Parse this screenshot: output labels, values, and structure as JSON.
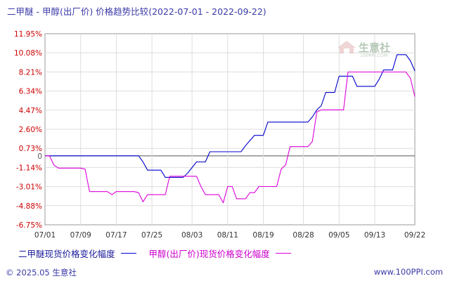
{
  "title": {
    "main": "二甲醚 - 甲醇(出厂价) 价格趋势比较",
    "range": "(2022-07-01 - 2022-09-22)"
  },
  "chart_data": {
    "type": "line",
    "y_ticks": [
      "11.95%",
      "10.08%",
      "8.21%",
      "6.34%",
      "4.47%",
      "2.60%",
      "0.73%",
      "0",
      "-1.14%",
      "-3.01%",
      "-4.88%",
      "-6.75%"
    ],
    "y_tick_values": [
      11.95,
      10.08,
      8.21,
      6.34,
      4.47,
      2.6,
      0.73,
      0,
      -1.14,
      -3.01,
      -4.88,
      -6.75
    ],
    "ylim": [
      -6.75,
      11.95
    ],
    "xlim": [
      "2022-07-01",
      "2022-09-22"
    ],
    "x_ticks": [
      {
        "label": "07/01",
        "date": "2022-07-01"
      },
      {
        "label": "07/09",
        "date": "2022-07-09"
      },
      {
        "label": "07/17",
        "date": "2022-07-17"
      },
      {
        "label": "07/25",
        "date": "2022-07-25"
      },
      {
        "label": "08/03",
        "date": "2022-08-03"
      },
      {
        "label": "08/11",
        "date": "2022-08-11"
      },
      {
        "label": "08/19",
        "date": "2022-08-19"
      },
      {
        "label": "08/28",
        "date": "2022-08-28"
      },
      {
        "label": "09/05",
        "date": "2022-09-05"
      },
      {
        "label": "09/13",
        "date": "2022-09-13"
      },
      {
        "label": "09/22",
        "date": "2022-09-22"
      }
    ],
    "grid": true,
    "legend_placement": "bottom",
    "series": [
      {
        "name": "二甲醚现货价格变化幅度",
        "color": "#0000cc",
        "points": [
          [
            "2022-07-01",
            0
          ],
          [
            "2022-07-03",
            0
          ],
          [
            "2022-07-22",
            0
          ],
          [
            "2022-07-23",
            -0.6
          ],
          [
            "2022-07-24",
            -1.4
          ],
          [
            "2022-07-27",
            -1.4
          ],
          [
            "2022-07-28",
            -2.1
          ],
          [
            "2022-08-01",
            -2.1
          ],
          [
            "2022-08-02",
            -1.7
          ],
          [
            "2022-08-04",
            -0.6
          ],
          [
            "2022-08-06",
            -0.6
          ],
          [
            "2022-08-07",
            0.4
          ],
          [
            "2022-08-14",
            0.4
          ],
          [
            "2022-08-15",
            1.0
          ],
          [
            "2022-08-16",
            1.5
          ],
          [
            "2022-08-17",
            2.0
          ],
          [
            "2022-08-19",
            2.0
          ],
          [
            "2022-08-20",
            3.3
          ],
          [
            "2022-08-29",
            3.3
          ],
          [
            "2022-08-30",
            3.8
          ],
          [
            "2022-08-31",
            4.5
          ],
          [
            "2022-09-01",
            4.9
          ],
          [
            "2022-09-02",
            6.2
          ],
          [
            "2022-09-03",
            6.2
          ],
          [
            "2022-09-04",
            6.2
          ],
          [
            "2022-09-05",
            7.8
          ],
          [
            "2022-09-06",
            7.8
          ],
          [
            "2022-09-08",
            7.8
          ],
          [
            "2022-09-09",
            6.8
          ],
          [
            "2022-09-12",
            6.8
          ],
          [
            "2022-09-13",
            6.8
          ],
          [
            "2022-09-14",
            7.5
          ],
          [
            "2022-09-15",
            8.4
          ],
          [
            "2022-09-17",
            8.4
          ],
          [
            "2022-09-18",
            9.9
          ],
          [
            "2022-09-20",
            9.9
          ],
          [
            "2022-09-21",
            9.3
          ],
          [
            "2022-09-22",
            8.3
          ]
        ]
      },
      {
        "name": "甲醇(出厂价)现货价格变化幅度",
        "color": "#dd00dd",
        "points": [
          [
            "2022-07-01",
            0
          ],
          [
            "2022-07-02",
            0
          ],
          [
            "2022-07-03",
            -0.9
          ],
          [
            "2022-07-04",
            -1.2
          ],
          [
            "2022-07-08",
            -1.2
          ],
          [
            "2022-07-09",
            -1.2
          ],
          [
            "2022-07-10",
            -1.3
          ],
          [
            "2022-07-11",
            -3.5
          ],
          [
            "2022-07-15",
            -3.5
          ],
          [
            "2022-07-16",
            -3.8
          ],
          [
            "2022-07-17",
            -3.5
          ],
          [
            "2022-07-21",
            -3.5
          ],
          [
            "2022-07-22",
            -3.6
          ],
          [
            "2022-07-23",
            -4.5
          ],
          [
            "2022-07-24",
            -3.8
          ],
          [
            "2022-07-28",
            -3.8
          ],
          [
            "2022-07-29",
            -2.0
          ],
          [
            "2022-08-04",
            -2.0
          ],
          [
            "2022-08-05",
            -3.0
          ],
          [
            "2022-08-06",
            -3.8
          ],
          [
            "2022-08-09",
            -3.8
          ],
          [
            "2022-08-10",
            -4.6
          ],
          [
            "2022-08-11",
            -3.0
          ],
          [
            "2022-08-12",
            -3.0
          ],
          [
            "2022-08-13",
            -4.2
          ],
          [
            "2022-08-15",
            -4.2
          ],
          [
            "2022-08-16",
            -3.6
          ],
          [
            "2022-08-17",
            -3.6
          ],
          [
            "2022-08-18",
            -3.0
          ],
          [
            "2022-08-22",
            -3.0
          ],
          [
            "2022-08-23",
            -1.3
          ],
          [
            "2022-08-24",
            -0.9
          ],
          [
            "2022-08-25",
            0.9
          ],
          [
            "2022-08-29",
            0.9
          ],
          [
            "2022-08-30",
            1.4
          ],
          [
            "2022-08-31",
            4.3
          ],
          [
            "2022-09-01",
            4.5
          ],
          [
            "2022-09-06",
            4.5
          ],
          [
            "2022-09-07",
            8.2
          ],
          [
            "2022-09-20",
            8.2
          ],
          [
            "2022-09-21",
            7.6
          ],
          [
            "2022-09-22",
            5.8
          ]
        ]
      }
    ]
  },
  "legend": {
    "series1_label": "二甲醚现货价格变化幅度",
    "series2_label": "甲醇(出厂价)现货价格变化幅度"
  },
  "footer": {
    "copyright": "© 2025.05 生意社",
    "url": "www.100PPI.com"
  },
  "watermark": {
    "text": "生意社",
    "sub": "100PPI.COM"
  }
}
